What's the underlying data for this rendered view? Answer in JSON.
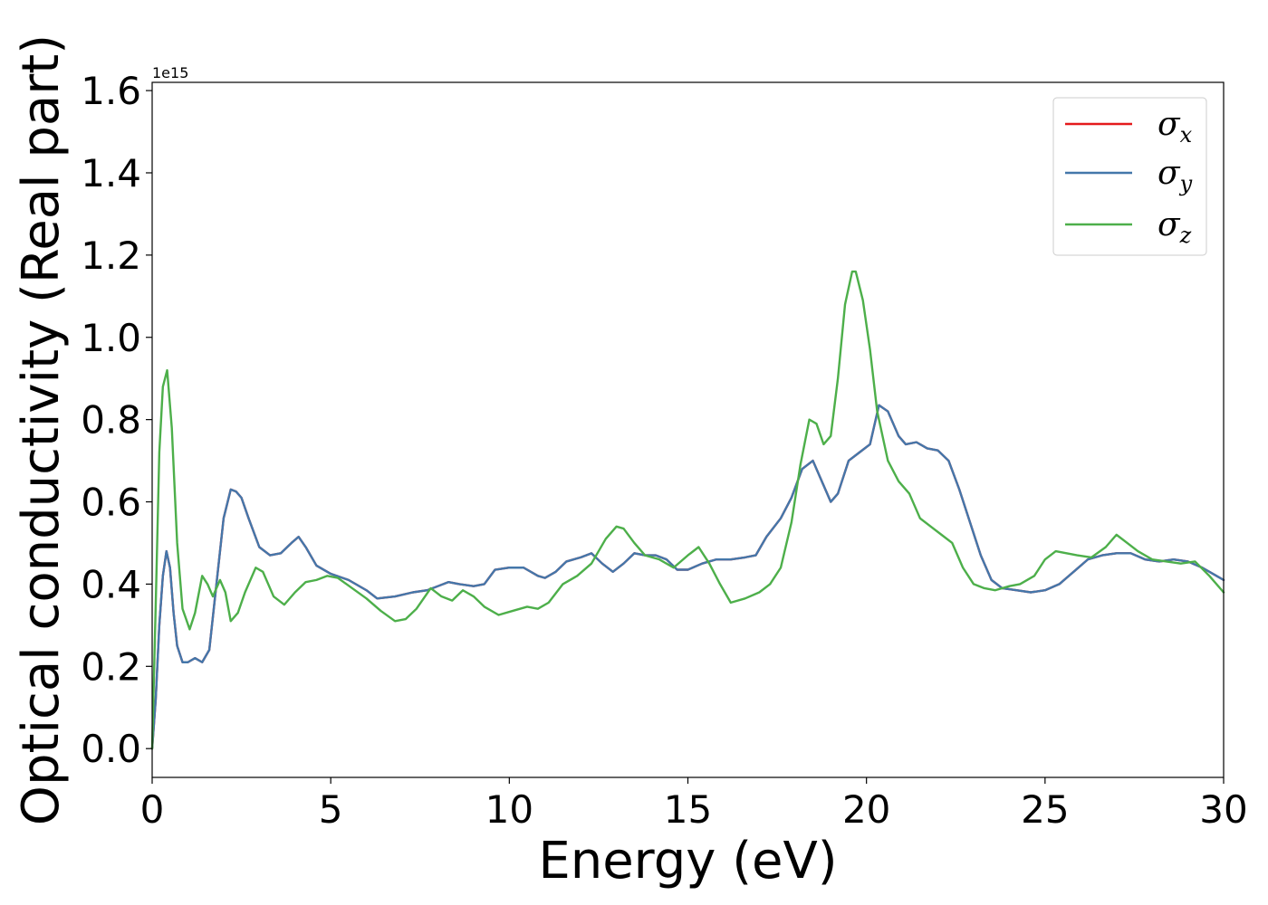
{
  "chart_data": {
    "type": "line",
    "xlabel": "Energy (eV)",
    "ylabel": "Optical conductivity (Real part)",
    "offset_text": "1e15",
    "xlim": [
      0,
      30
    ],
    "ylim": [
      -0.07,
      1.62
    ],
    "x_ticks": [
      0,
      5,
      10,
      15,
      20,
      25,
      30
    ],
    "x_tick_labels": [
      "0",
      "5",
      "10",
      "15",
      "20",
      "25",
      "30"
    ],
    "y_ticks": [
      0.0,
      0.2,
      0.4,
      0.6,
      0.8,
      1.0,
      1.2,
      1.4,
      1.6
    ],
    "y_tick_labels": [
      "0.0",
      "0.2",
      "0.4",
      "0.6",
      "0.8",
      "1.0",
      "1.2",
      "1.4",
      "1.6"
    ],
    "grid": false,
    "legend_position": "top-right",
    "series": [
      {
        "name": "σ_x",
        "legend_symbol": "σ",
        "legend_sub": "x",
        "color": "#e41a1c",
        "x": [
          0,
          0.1,
          0.2,
          0.3,
          0.4,
          0.5,
          0.6,
          0.7,
          0.85,
          1.0,
          1.2,
          1.4,
          1.6,
          1.8,
          2.0,
          2.2,
          2.35,
          2.5,
          2.7,
          3.0,
          3.3,
          3.6,
          3.9,
          4.1,
          4.3,
          4.6,
          5.0,
          5.5,
          6.0,
          6.3,
          6.8,
          7.3,
          7.7,
          8.0,
          8.3,
          8.6,
          9.0,
          9.3,
          9.6,
          10.0,
          10.4,
          10.8,
          11.0,
          11.3,
          11.6,
          12.0,
          12.3,
          12.6,
          12.9,
          13.2,
          13.5,
          13.8,
          14.1,
          14.4,
          14.7,
          15.0,
          15.4,
          15.8,
          16.2,
          16.6,
          16.9,
          17.2,
          17.6,
          17.9,
          18.2,
          18.5,
          18.8,
          19.0,
          19.2,
          19.5,
          19.8,
          20.1,
          20.35,
          20.6,
          20.9,
          21.1,
          21.4,
          21.7,
          22.0,
          22.3,
          22.6,
          22.9,
          23.2,
          23.5,
          23.8,
          24.2,
          24.6,
          25.0,
          25.4,
          25.8,
          26.2,
          26.6,
          27.0,
          27.4,
          27.8,
          28.2,
          28.6,
          29.0,
          29.4,
          29.8,
          30.0
        ],
        "y": [
          0.0,
          0.12,
          0.3,
          0.42,
          0.48,
          0.44,
          0.33,
          0.25,
          0.21,
          0.21,
          0.22,
          0.21,
          0.24,
          0.4,
          0.56,
          0.63,
          0.625,
          0.61,
          0.56,
          0.49,
          0.47,
          0.475,
          0.5,
          0.515,
          0.49,
          0.445,
          0.425,
          0.41,
          0.385,
          0.365,
          0.37,
          0.38,
          0.385,
          0.395,
          0.405,
          0.4,
          0.395,
          0.4,
          0.435,
          0.44,
          0.44,
          0.42,
          0.415,
          0.43,
          0.455,
          0.465,
          0.475,
          0.45,
          0.43,
          0.45,
          0.475,
          0.47,
          0.47,
          0.46,
          0.435,
          0.435,
          0.45,
          0.46,
          0.46,
          0.465,
          0.47,
          0.515,
          0.56,
          0.61,
          0.68,
          0.7,
          0.64,
          0.6,
          0.62,
          0.7,
          0.72,
          0.74,
          0.835,
          0.82,
          0.76,
          0.74,
          0.745,
          0.73,
          0.725,
          0.7,
          0.63,
          0.55,
          0.47,
          0.41,
          0.39,
          0.385,
          0.38,
          0.385,
          0.4,
          0.43,
          0.46,
          0.47,
          0.475,
          0.475,
          0.46,
          0.455,
          0.46,
          0.455,
          0.44,
          0.42,
          0.41
        ]
      },
      {
        "name": "σ_y",
        "legend_symbol": "σ",
        "legend_sub": "y",
        "color": "#4477aa",
        "x": [
          0,
          0.1,
          0.2,
          0.3,
          0.4,
          0.5,
          0.6,
          0.7,
          0.85,
          1.0,
          1.2,
          1.4,
          1.6,
          1.8,
          2.0,
          2.2,
          2.35,
          2.5,
          2.7,
          3.0,
          3.3,
          3.6,
          3.9,
          4.1,
          4.3,
          4.6,
          5.0,
          5.5,
          6.0,
          6.3,
          6.8,
          7.3,
          7.7,
          8.0,
          8.3,
          8.6,
          9.0,
          9.3,
          9.6,
          10.0,
          10.4,
          10.8,
          11.0,
          11.3,
          11.6,
          12.0,
          12.3,
          12.6,
          12.9,
          13.2,
          13.5,
          13.8,
          14.1,
          14.4,
          14.7,
          15.0,
          15.4,
          15.8,
          16.2,
          16.6,
          16.9,
          17.2,
          17.6,
          17.9,
          18.2,
          18.5,
          18.8,
          19.0,
          19.2,
          19.5,
          19.8,
          20.1,
          20.35,
          20.6,
          20.9,
          21.1,
          21.4,
          21.7,
          22.0,
          22.3,
          22.6,
          22.9,
          23.2,
          23.5,
          23.8,
          24.2,
          24.6,
          25.0,
          25.4,
          25.8,
          26.2,
          26.6,
          27.0,
          27.4,
          27.8,
          28.2,
          28.6,
          29.0,
          29.4,
          29.8,
          30.0
        ],
        "y": [
          0.0,
          0.12,
          0.3,
          0.42,
          0.48,
          0.44,
          0.33,
          0.25,
          0.21,
          0.21,
          0.22,
          0.21,
          0.24,
          0.4,
          0.56,
          0.63,
          0.625,
          0.61,
          0.56,
          0.49,
          0.47,
          0.475,
          0.5,
          0.515,
          0.49,
          0.445,
          0.425,
          0.41,
          0.385,
          0.365,
          0.37,
          0.38,
          0.385,
          0.395,
          0.405,
          0.4,
          0.395,
          0.4,
          0.435,
          0.44,
          0.44,
          0.42,
          0.415,
          0.43,
          0.455,
          0.465,
          0.475,
          0.45,
          0.43,
          0.45,
          0.475,
          0.47,
          0.47,
          0.46,
          0.435,
          0.435,
          0.45,
          0.46,
          0.46,
          0.465,
          0.47,
          0.515,
          0.56,
          0.61,
          0.68,
          0.7,
          0.64,
          0.6,
          0.62,
          0.7,
          0.72,
          0.74,
          0.835,
          0.82,
          0.76,
          0.74,
          0.745,
          0.73,
          0.725,
          0.7,
          0.63,
          0.55,
          0.47,
          0.41,
          0.39,
          0.385,
          0.38,
          0.385,
          0.4,
          0.43,
          0.46,
          0.47,
          0.475,
          0.475,
          0.46,
          0.455,
          0.46,
          0.455,
          0.44,
          0.42,
          0.41
        ]
      },
      {
        "name": "σ_z",
        "legend_symbol": "σ",
        "legend_sub": "z",
        "color": "#4daf4a",
        "x": [
          0,
          0.1,
          0.2,
          0.3,
          0.42,
          0.55,
          0.7,
          0.85,
          1.05,
          1.2,
          1.4,
          1.55,
          1.7,
          1.9,
          2.05,
          2.2,
          2.4,
          2.6,
          2.9,
          3.1,
          3.4,
          3.7,
          4.0,
          4.3,
          4.6,
          4.9,
          5.2,
          5.6,
          6.0,
          6.4,
          6.8,
          7.1,
          7.4,
          7.8,
          8.1,
          8.4,
          8.7,
          9.0,
          9.3,
          9.7,
          10.1,
          10.5,
          10.8,
          11.1,
          11.5,
          11.9,
          12.3,
          12.7,
          13.0,
          13.2,
          13.5,
          13.8,
          14.2,
          14.6,
          15.0,
          15.3,
          15.6,
          15.9,
          16.2,
          16.6,
          17.0,
          17.3,
          17.6,
          17.9,
          18.15,
          18.4,
          18.6,
          18.8,
          19.0,
          19.2,
          19.4,
          19.6,
          19.7,
          19.9,
          20.1,
          20.3,
          20.6,
          20.9,
          21.2,
          21.5,
          21.8,
          22.1,
          22.4,
          22.7,
          23.0,
          23.3,
          23.6,
          24.0,
          24.3,
          24.7,
          25.0,
          25.3,
          25.6,
          25.9,
          26.3,
          26.7,
          27.0,
          27.3,
          27.6,
          28.0,
          28.4,
          28.8,
          29.2,
          29.6,
          30.0
        ],
        "y": [
          0.0,
          0.35,
          0.72,
          0.88,
          0.92,
          0.78,
          0.5,
          0.34,
          0.29,
          0.33,
          0.42,
          0.4,
          0.37,
          0.41,
          0.38,
          0.31,
          0.33,
          0.38,
          0.44,
          0.43,
          0.37,
          0.35,
          0.38,
          0.405,
          0.41,
          0.42,
          0.415,
          0.39,
          0.365,
          0.335,
          0.31,
          0.315,
          0.34,
          0.39,
          0.37,
          0.36,
          0.385,
          0.37,
          0.345,
          0.325,
          0.335,
          0.345,
          0.34,
          0.355,
          0.4,
          0.42,
          0.45,
          0.51,
          0.54,
          0.535,
          0.5,
          0.47,
          0.46,
          0.44,
          0.47,
          0.49,
          0.45,
          0.4,
          0.355,
          0.365,
          0.38,
          0.4,
          0.44,
          0.55,
          0.69,
          0.8,
          0.79,
          0.74,
          0.76,
          0.9,
          1.08,
          1.16,
          1.16,
          1.09,
          0.97,
          0.82,
          0.7,
          0.65,
          0.62,
          0.56,
          0.54,
          0.52,
          0.5,
          0.44,
          0.4,
          0.39,
          0.385,
          0.395,
          0.4,
          0.42,
          0.46,
          0.48,
          0.475,
          0.47,
          0.465,
          0.49,
          0.52,
          0.5,
          0.48,
          0.46,
          0.455,
          0.45,
          0.455,
          0.42,
          0.38
        ]
      }
    ]
  }
}
